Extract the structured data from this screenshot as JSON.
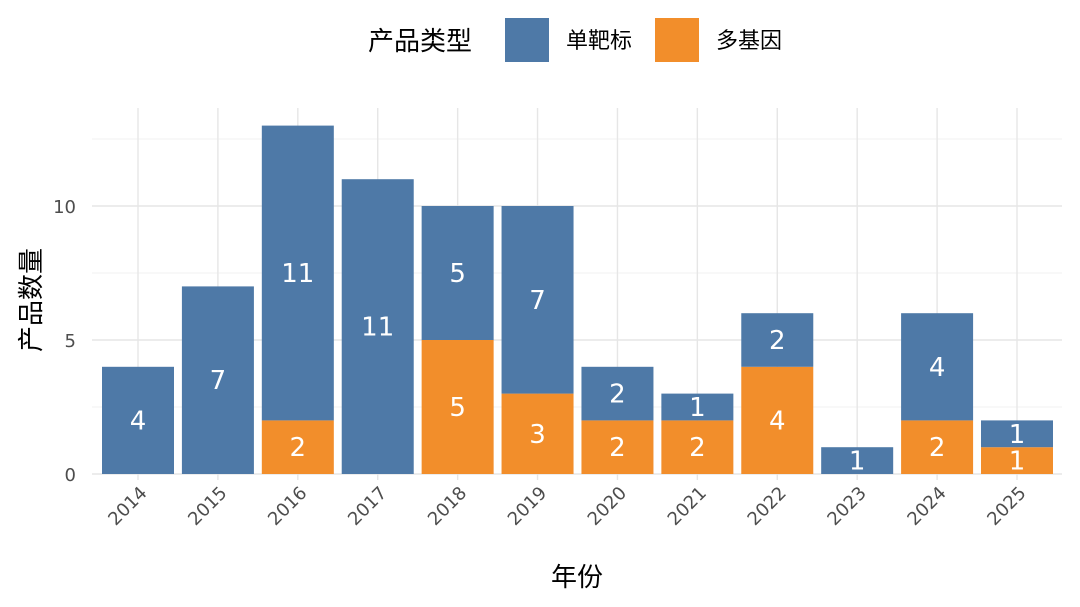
{
  "chart_data": {
    "type": "bar",
    "stacked": true,
    "categories": [
      "2014",
      "2015",
      "2016",
      "2017",
      "2018",
      "2019",
      "2020",
      "2021",
      "2022",
      "2023",
      "2024",
      "2025"
    ],
    "series": [
      {
        "name": "单靶标",
        "color": "#4E79A7",
        "values": [
          4,
          7,
          11,
          11,
          5,
          7,
          2,
          1,
          2,
          1,
          4,
          1
        ]
      },
      {
        "name": "多基因",
        "color": "#F28E2B",
        "values": [
          0,
          0,
          2,
          0,
          5,
          3,
          2,
          2,
          4,
          0,
          2,
          1
        ]
      }
    ],
    "xlabel": "年份",
    "ylabel": "产品数量",
    "yticks": [
      0,
      5,
      10
    ],
    "ylim": [
      0,
      13.5
    ],
    "grid": true,
    "legend": {
      "title": "产品类型",
      "placement": "top"
    }
  }
}
